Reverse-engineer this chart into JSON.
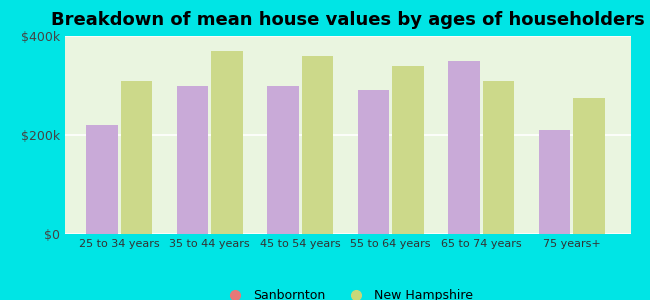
{
  "title": "Breakdown of mean house values by ages of householders",
  "categories": [
    "25 to 34 years",
    "35 to 44 years",
    "45 to 54 years",
    "55 to 64 years",
    "65 to 74 years",
    "75 years+"
  ],
  "sanbornton": [
    220000,
    300000,
    300000,
    290000,
    350000,
    210000
  ],
  "new_hampshire": [
    310000,
    370000,
    360000,
    340000,
    310000,
    275000
  ],
  "sanbornton_color": "#c9aad8",
  "new_hampshire_color": "#ccd98a",
  "background_color": "#00e5e5",
  "plot_bg_top": "#e8f5e2",
  "plot_bg_bottom": "#f5fff5",
  "ylim": [
    0,
    400000
  ],
  "ytick_labels": [
    "$0",
    "$200k",
    "$400k"
  ],
  "ytick_values": [
    0,
    200000,
    400000
  ],
  "title_fontsize": 13,
  "legend_sanbornton": "Sanbornton",
  "legend_new_hampshire": "New Hampshire",
  "legend_marker_sanbornton": "#e87878",
  "legend_marker_new_hampshire": "#c8d878",
  "bar_width": 0.35,
  "bar_gap": 0.03
}
